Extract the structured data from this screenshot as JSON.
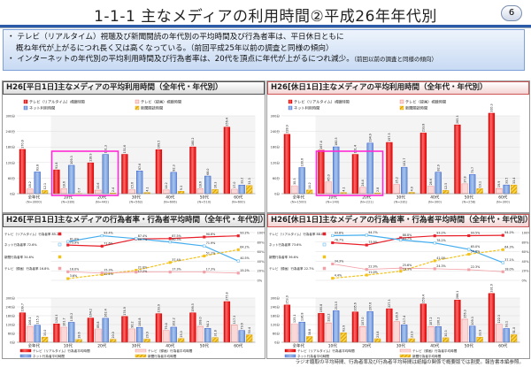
{
  "header": {
    "title": "1-1-1 主なメディアの利用時間②平成26年年代別",
    "page": "6"
  },
  "summary": {
    "bullet1_line1": "テレビ（リアルタイム）視聴及び新聞閲読の年代別の平均時間及び行為者率は、平日休日ともに",
    "bullet1_line2": "概ね年代が上がるにつれ長く又は高くなっている。（前回平成25年以前の調査と同様の傾向）",
    "bullet2": "インターネットの年代別の平均利用時間及び行為者率は、20代を頂点に年代が上がるにつれ減少。",
    "bullet2_note": "（前回以前の調査と同様の傾向）"
  },
  "panels": {
    "tl_title": "H26[平日1日]主なメディアの平均利用時間（全年代・年代別）",
    "tr_title": "H26[休日1日]主なメディアの平均利用時間（全年代・年代別）",
    "bl_title": "H26[平日1日]主なメディアの行為者率・行為者平均時間（全年代・年代別）",
    "br_title": "H26[休日1日]主なメディアの行為者率・行為者平均時間（全年代・年代別）"
  },
  "footer": "ラジオ聴取の平均時間、行為者率及び行為者平均時間は紙幅の関係で概要版では割愛。報告書本編参照。",
  "colors": {
    "tv": "#e8202a",
    "rec": "#f29a9a",
    "net": "#7ea6e0",
    "news": "#f3c21a",
    "net_line": "#45aef0",
    "highlight": "#ff2ad4"
  },
  "chart_data": [
    {
      "type": "bar",
      "ylim": [
        0,
        300
      ],
      "yticks": [
        "0分",
        "60分",
        "120分",
        "180分",
        "240分",
        "300分"
      ],
      "categories": [
        "全年代",
        "10代",
        "20代",
        "30代",
        "40代",
        "50代",
        "60代"
      ],
      "sublabels": [
        "(N=3000)",
        "(N=280)",
        "(N=442)",
        "(N=562)",
        "(N=606)",
        "(N=510)",
        "(N=600)"
      ],
      "highlight": [
        "10代",
        "20代"
      ],
      "legend": "top",
      "series": [
        {
          "name": "テレビ（リアルタイム）視聴時間",
          "values": [
            170.8,
            91.8,
            118.9,
            151.6,
            169.5,
            180.2,
            256.4
          ]
        },
        {
          "name": "テレビ（録画）視聴時間",
          "values": [
            18.2,
            18.6,
            13.6,
            15.6,
            14.2,
            18.6,
            17.0
          ]
        },
        {
          "name": "ネット利用時間",
          "values": [
            83.8,
            109.3,
            151.3,
            87.6,
            82.3,
            68.0,
            33.2
          ]
        },
        {
          "name": "新聞閲読時間",
          "values": [
            12.1,
            0.7,
            2.4,
            4.1,
            9.3,
            16.3,
            31.3
          ]
        }
      ]
    },
    {
      "type": "bar",
      "ylim": [
        0,
        300
      ],
      "yticks": [
        "0分",
        "60分",
        "120分",
        "180分",
        "240分",
        "300分"
      ],
      "categories": [
        "全年代",
        "10代",
        "20代",
        "30代",
        "40代",
        "50代",
        "60代"
      ],
      "sublabels": [
        "(N=1500)",
        "(N=140)",
        "(N=221)",
        "(N=281)",
        "(N=300)",
        "(N=258)",
        "(N=300)"
      ],
      "highlight": [
        "10代",
        "20代"
      ],
      "legend": "top",
      "series": [
        {
          "name": "テレビ（リアルタイム）視聴時間",
          "values": [
            228.9,
            167.4,
            151.4,
            197.5,
            233.8,
            265.3,
            310.3
          ]
        },
        {
          "name": "テレビ（録画）視聴時間",
          "values": [
            30.3,
            45.0,
            24.4,
            35.2,
            28.6,
            37.8,
            19.9
          ]
        },
        {
          "name": "ネット利用時間",
          "values": [
            100.6,
            180.5,
            194.9,
            101.7,
            82.9,
            73.7,
            33.5
          ]
        },
        {
          "name": "新聞閲読時間",
          "values": [
            14.2,
            4.1,
            2.8,
            4.9,
            12.5,
            19.1,
            33.4
          ]
        }
      ]
    },
    {
      "type": "line+bar",
      "line_ylim": [
        0,
        100
      ],
      "line_yticks": [
        "0%",
        "20%",
        "40%",
        "60%",
        "80%",
        "100%"
      ],
      "bar_ylim": [
        0,
        300
      ],
      "bar_yticks": [
        "0分",
        "60分",
        "120分",
        "180分",
        "240分",
        "300分"
      ],
      "categories": [
        "全年代",
        "10代",
        "20代",
        "30代",
        "40代",
        "50代",
        "60代"
      ],
      "line_labels": [
        "テレビ（リアルタイム）行為者率 85.2%",
        "ネット行為者率 72.6%",
        "新聞行為者率 34.6%",
        "テレビ（録画）行為者率 16.8%"
      ],
      "lines": [
        {
          "name": "テレビ（リアルタイム）行為者率",
          "values": [
            73.9,
            71.6,
            86.7,
            87.5,
            90.8,
            93.2
          ]
        },
        {
          "name": "ネット行為者率",
          "values": [
            81.0,
            93.4,
            87.4,
            80.3,
            71.9,
            40.5
          ]
        },
        {
          "name": "新聞行為者率",
          "values": [
            3.6,
            12.2,
            21.0,
            37.4,
            51.1,
            64.2
          ]
        },
        {
          "name": "テレビ（録画）行為者率",
          "values": [
            18.0,
            15.3,
            17.2,
            17.3,
            17.3,
            15.2
          ]
        }
      ],
      "bars": [
        {
          "name": "テレビ（リアルタイム）行為者平均時間",
          "values": [
            199.7,
            124.3,
            164.2,
            174.9,
            193.9,
            199.5,
            275.8
          ]
        },
        {
          "name": "テレビ（録画）行為者平均時間",
          "values": [
            108.1,
            101.7,
            89.8,
            90.2,
            79.4,
            108.0,
            117.3
          ]
        },
        {
          "name": "ネット行為者平均時間",
          "values": [
            115.3,
            135.2,
            162.4,
            100.8,
            102.2,
            94.1,
            79.6
          ]
        },
        {
          "name": "新聞行為者平均時間",
          "values": [
            35.0,
            18.6,
            20.0,
            20.9,
            25.0,
            31.8,
            50.4
          ]
        }
      ]
    },
    {
      "type": "line+bar",
      "line_ylim": [
        0,
        100
      ],
      "line_yticks": [
        "0%",
        "20%",
        "40%",
        "60%",
        "80%",
        "100%"
      ],
      "bar_ylim": [
        0,
        300
      ],
      "bar_yticks": [
        "0分",
        "60分",
        "120分",
        "180分",
        "240分",
        "300分"
      ],
      "categories": [
        "全年代",
        "10代",
        "20代",
        "30代",
        "40代",
        "50代",
        "60代"
      ],
      "line_labels": [
        "テレビ（リアルタイム）行為者率 88.8%",
        "ネット行為者率 73.6%",
        "新聞行為者率 36.6%",
        "テレビ（録画）行為者率 22.7%"
      ],
      "lines": [
        {
          "name": "テレビ（リアルタイム）行為者率",
          "values": [
            78.7,
            73.9,
            88.8,
            93.2,
            93.5,
            94.2
          ]
        },
        {
          "name": "ネット行為者率",
          "values": [
            93.6,
            94.7,
            84.7,
            78.2,
            65.0,
            37.1
          ]
        },
        {
          "name": "新聞行為者率",
          "values": [
            4.4,
            11.0,
            19.1,
            41.0,
            54.6,
            64.3
          ]
        },
        {
          "name": "テレビ（録画）行為者率",
          "values": [
            34.3,
            22.9,
            25.6,
            24.3,
            22.3,
            18.0
          ]
        }
      ],
      "bars": [
        {
          "name": "テレビ（リアルタイム）行為者平均時間",
          "values": [
            253.0,
            195.8,
            205.6,
            227.3,
            259.4,
            286.1,
            331.0
          ]
        },
        {
          "name": "テレビ（録画）行為者平均時間",
          "values": [
            125.1,
            131.2,
            107.0,
            139.9,
            107.2,
            156.3,
            122.3
          ]
        },
        {
          "name": "ネット行為者平均時間",
          "values": [
            136.8,
            213.5,
            207.6,
            117.4,
            106.2,
            109.3,
            93.1
          ]
        },
        {
          "name": "新聞行為者平均時間",
          "values": [
            38.8,
            63.9,
            23.8,
            23.9,
            30.3,
            33.9,
            51.0
          ]
        }
      ]
    }
  ]
}
